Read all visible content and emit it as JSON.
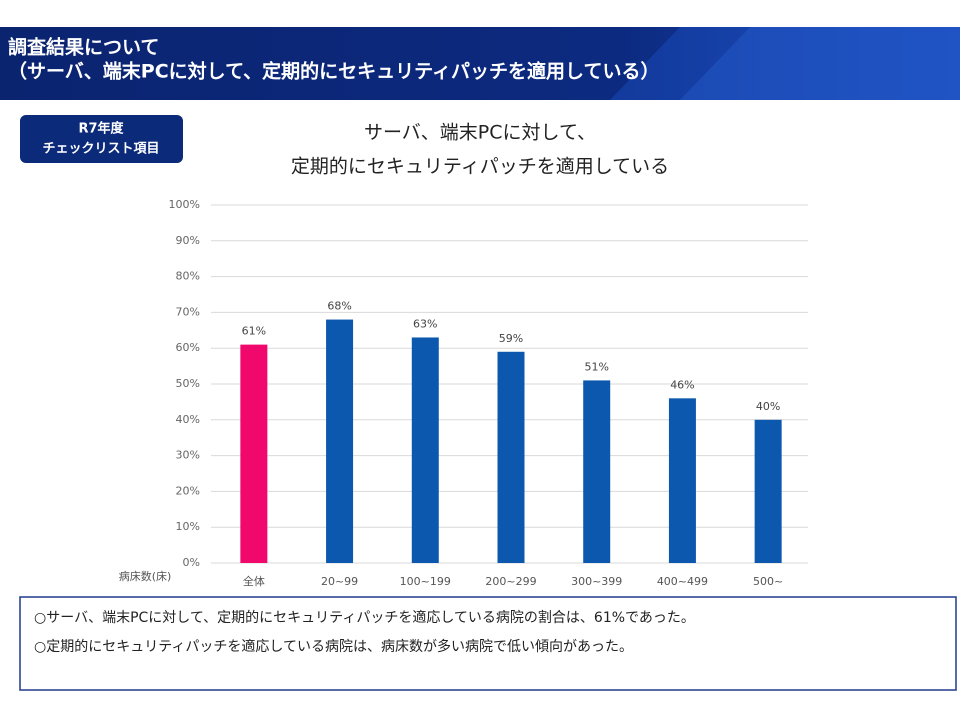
{
  "header": {
    "lines": [
      "調査結果について",
      "（サーバ、端末PCに対して、定期的にセキュリティパッチを適用している）"
    ]
  },
  "badge": [
    "R7年度",
    "チェックリスト項目"
  ],
  "chart_data": {
    "type": "bar",
    "title": [
      "サーバ、端末PCに対して、",
      "定期的にセキュリティパッチを適用している"
    ],
    "x_label": "病床数(床)",
    "categories": [
      "全体",
      "20~99",
      "100~199",
      "200~299",
      "300~399",
      "400~499",
      "500~"
    ],
    "values": [
      61,
      68,
      63,
      59,
      51,
      46,
      40
    ],
    "value_labels": [
      "61%",
      "68%",
      "63%",
      "59%",
      "51%",
      "46%",
      "40%"
    ],
    "colors": [
      "#f0086c",
      "#0b58ae",
      "#0b58ae",
      "#0b58ae",
      "#0b58ae",
      "#0b58ae",
      "#0b58ae"
    ],
    "ylim": [
      0,
      100
    ],
    "yticks": [
      {
        "value": 0,
        "label": "0%"
      },
      {
        "value": 10,
        "label": "10%"
      },
      {
        "value": 20,
        "label": "20%"
      },
      {
        "value": 30,
        "label": "30%"
      },
      {
        "value": 40,
        "label": "40%"
      },
      {
        "value": 50,
        "label": "50%"
      },
      {
        "value": 60,
        "label": "60%"
      },
      {
        "value": 70,
        "label": "70%"
      },
      {
        "value": 80,
        "label": "80%"
      },
      {
        "value": 90,
        "label": "90%"
      },
      {
        "value": 100,
        "label": "100%"
      }
    ],
    "grid": true
  },
  "notes": [
    "○サーバ、端末PCに対して、定期的にセキュリティパッチを適応している病院の割合は、61%であった。",
    "○定期的にセキュリティパッチを適応している病院は、病床数が多い病院で低い傾向があった。"
  ]
}
